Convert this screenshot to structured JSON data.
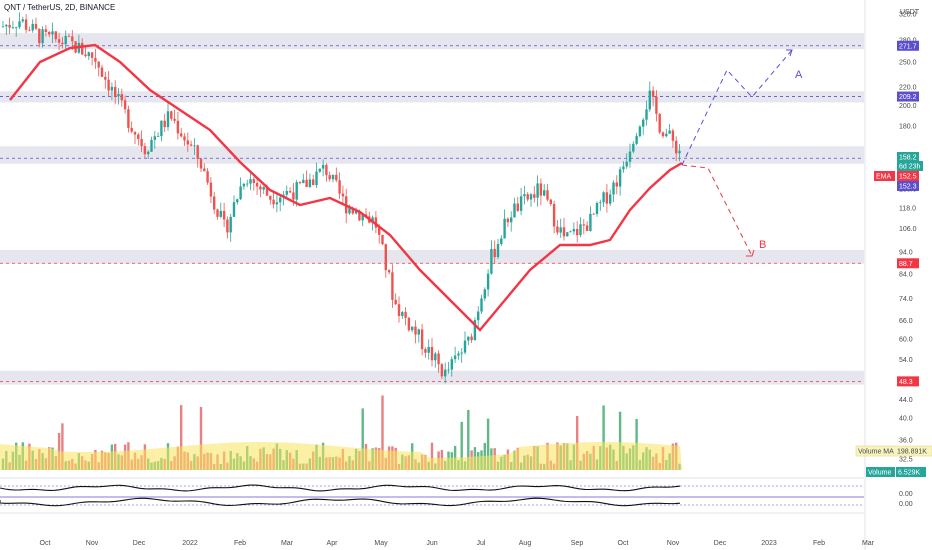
{
  "header": {
    "symbol_line": "QNT / TetherUS, 2D, BINANCE"
  },
  "colors": {
    "up": "#26a69a",
    "down": "#ef5350",
    "ema": "#f23645",
    "volume_ma": "#f7e35c",
    "zone_fill": "#e6e6ee",
    "projection_a": "#5b4fcf",
    "projection_b": "#f23645"
  },
  "axes": {
    "currency": "USDT",
    "y_ticks": [
      "320.0",
      "280.0",
      "250.0",
      "220.0",
      "200.0",
      "180.0",
      "150.0",
      "140.0",
      "130.0",
      "118.0",
      "106.0",
      "94.0",
      "84.0",
      "74.0",
      "66.0",
      "60.0",
      "54.0",
      "48.0",
      "44.0",
      "40.0",
      "36.0",
      "32.5"
    ],
    "x_ticks": [
      "Oct",
      "Nov",
      "Dec",
      "2022",
      "Feb",
      "Mar",
      "Apr",
      "May",
      "Jun",
      "Jul",
      "Aug",
      "Sep",
      "Oct",
      "Nov",
      "Dec",
      "2023",
      "Feb",
      "Mar"
    ],
    "indicator_ticks": [
      "0.00",
      "0.00"
    ]
  },
  "price_tags": [
    {
      "label": "271.7",
      "kind": "level"
    },
    {
      "label": "209.2",
      "kind": "level"
    },
    {
      "label": "158.2",
      "kind": "last"
    },
    {
      "label": "6d 23h",
      "kind": "countdown"
    },
    {
      "label": "152.5",
      "kind": "ema"
    },
    {
      "label": "152.3",
      "kind": "level"
    },
    {
      "label": "88.7",
      "kind": "level_red"
    },
    {
      "label": "48.3",
      "kind": "level_red"
    }
  ],
  "legend": {
    "ema_label": "EMA",
    "volume_ma_label": "Volume MA",
    "volume_ma_value": "198.891K",
    "volume_label": "Volume",
    "volume_value": "6.529K"
  },
  "projections": {
    "a_label": "A",
    "b_label": "B"
  },
  "chart_data": {
    "type": "line",
    "title": "QNT / TetherUS, 2D, BINANCE",
    "y_scale": "log",
    "ylim": [
      40,
      330
    ],
    "x": [
      "Oct",
      "Nov",
      "Dec",
      "2022",
      "Feb",
      "Mar",
      "Apr",
      "May",
      "Jun",
      "Jul",
      "Aug",
      "Sep",
      "Oct",
      "Nov"
    ],
    "series": [
      {
        "name": "EMA",
        "values": [
          230,
          265,
          210,
          165,
          130,
          130,
          130,
          95,
          62,
          66,
          100,
          107,
          150,
          152.5
        ]
      }
    ],
    "approx_close": [
      320,
      265,
      180,
      160,
      108,
      115,
      150,
      76,
      47,
      65,
      125,
      110,
      210,
      158.2
    ],
    "horizontal_levels": [
      271.7,
      209.2,
      152.3,
      88.7,
      48.3
    ],
    "last_price": 158.2,
    "grid": false
  }
}
